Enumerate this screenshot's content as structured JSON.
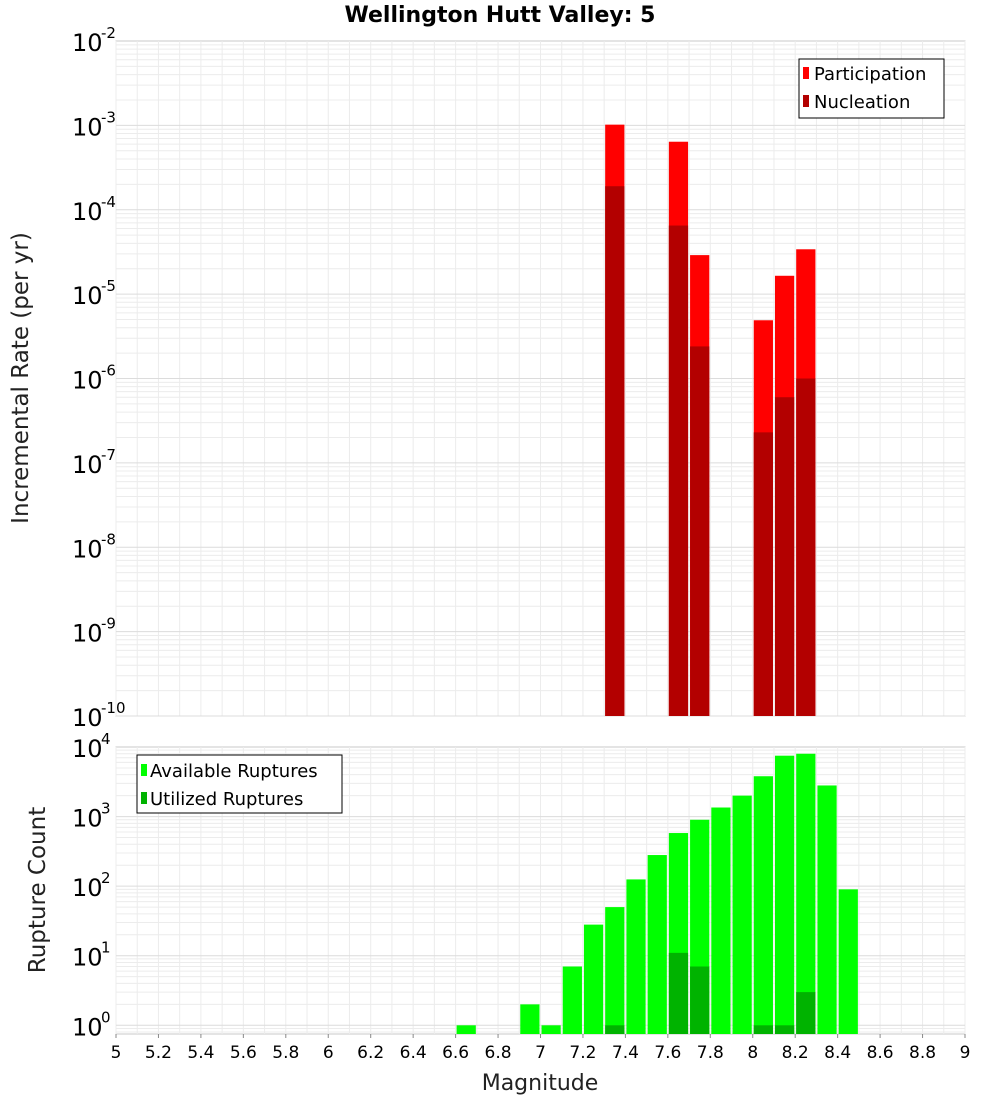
{
  "chart_data": [
    {
      "type": "bar",
      "title": "Wellington Hutt Valley: 5",
      "xlabel": "",
      "ylabel": "Incremental Rate (per yr)",
      "xlim": [
        5,
        9
      ],
      "ylim": [
        1e-10,
        0.01
      ],
      "yscale": "log",
      "grid": true,
      "legend_position": "top-right",
      "bin_width": 0.1,
      "series": [
        {
          "name": "Participation",
          "color": "#ff0000",
          "x": [
            7.35,
            7.65,
            7.75,
            8.05,
            8.15,
            8.25
          ],
          "values": [
            0.00102,
            0.00064,
            2.9e-05,
            4.9e-06,
            1.65e-05,
            3.4e-05
          ]
        },
        {
          "name": "Nucleation",
          "color": "#b30000",
          "x": [
            7.35,
            7.65,
            7.75,
            8.05,
            8.15,
            8.25
          ],
          "values": [
            0.00019,
            6.5e-05,
            2.4e-06,
            2.3e-07,
            6e-07,
            1e-06
          ]
        }
      ]
    },
    {
      "type": "bar",
      "title": "",
      "xlabel": "Magnitude",
      "ylabel": "Rupture Count",
      "xlim": [
        5,
        9
      ],
      "ylim": [
        0.75,
        10000
      ],
      "yscale": "log",
      "grid": true,
      "legend_position": "top-left",
      "bin_width": 0.1,
      "x_ticks": [
        "5",
        "5.2",
        "5.4",
        "5.6",
        "5.8",
        "6",
        "6.2",
        "6.4",
        "6.6",
        "6.8",
        "7",
        "7.2",
        "7.4",
        "7.6",
        "7.8",
        "8",
        "8.2",
        "8.4",
        "8.6",
        "8.8",
        "9"
      ],
      "series": [
        {
          "name": "Available Ruptures",
          "color": "#00ff00",
          "x": [
            6.65,
            6.95,
            7.05,
            7.15,
            7.25,
            7.35,
            7.45,
            7.55,
            7.65,
            7.75,
            7.85,
            7.95,
            8.05,
            8.15,
            8.25,
            8.35,
            8.45
          ],
          "values": [
            1,
            2,
            1,
            7,
            28,
            50,
            125,
            280,
            580,
            900,
            1350,
            2000,
            3800,
            7500,
            8000,
            2800,
            90
          ]
        },
        {
          "name": "Utilized Ruptures",
          "color": "#00b300",
          "x": [
            7.35,
            7.65,
            7.75,
            8.05,
            8.15,
            8.25
          ],
          "values": [
            1,
            11,
            7,
            1,
            1,
            3
          ]
        }
      ]
    }
  ]
}
